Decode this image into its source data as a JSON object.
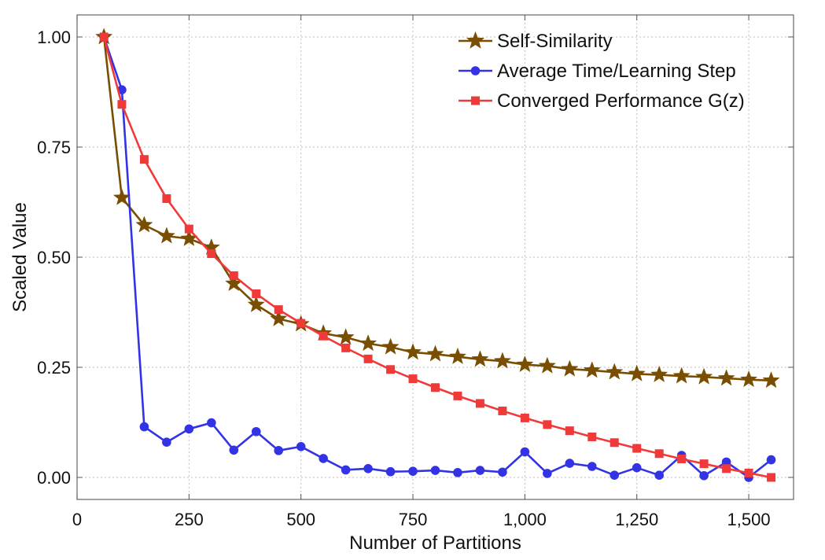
{
  "chart_data": {
    "type": "line",
    "title": "",
    "xlabel": "Number of Partitions",
    "ylabel": "Scaled Value",
    "xlim": [
      0,
      1600
    ],
    "ylim": [
      -0.05,
      1.05
    ],
    "xticks": [
      0,
      250,
      500,
      750,
      1000,
      1250,
      1500
    ],
    "xtick_labels": [
      "0",
      "250",
      "500",
      "750",
      "1,000",
      "1,250",
      "1,500"
    ],
    "yticks": [
      0,
      0.25,
      0.5,
      0.75,
      1.0
    ],
    "ytick_labels": [
      "0.00",
      "0.25",
      "0.50",
      "0.75",
      "1.00"
    ],
    "grid": true,
    "legend_position": "top-right",
    "series": [
      {
        "name": "Self-Similarity",
        "color": "#7a4e00",
        "marker": "star",
        "points": [
          [
            60,
            1.0
          ],
          [
            100,
            0.635
          ],
          [
            150,
            0.573
          ],
          [
            200,
            0.548
          ],
          [
            250,
            0.542
          ],
          [
            300,
            0.522
          ],
          [
            350,
            0.44
          ],
          [
            400,
            0.392
          ],
          [
            450,
            0.36
          ],
          [
            500,
            0.348
          ],
          [
            550,
            0.327
          ],
          [
            600,
            0.318
          ],
          [
            650,
            0.304
          ],
          [
            700,
            0.296
          ],
          [
            750,
            0.284
          ],
          [
            800,
            0.28
          ],
          [
            850,
            0.274
          ],
          [
            900,
            0.268
          ],
          [
            950,
            0.264
          ],
          [
            1000,
            0.256
          ],
          [
            1050,
            0.253
          ],
          [
            1100,
            0.246
          ],
          [
            1150,
            0.243
          ],
          [
            1200,
            0.239
          ],
          [
            1250,
            0.235
          ],
          [
            1300,
            0.233
          ],
          [
            1350,
            0.23
          ],
          [
            1400,
            0.228
          ],
          [
            1450,
            0.225
          ],
          [
            1500,
            0.222
          ],
          [
            1550,
            0.22
          ]
        ]
      },
      {
        "name": "Average Time/Learning Step",
        "color": "#3333e6",
        "marker": "circle",
        "points": [
          [
            60,
            1.0
          ],
          [
            100,
            0.88
          ],
          [
            150,
            0.115
          ],
          [
            200,
            0.08
          ],
          [
            250,
            0.11
          ],
          [
            300,
            0.124
          ],
          [
            350,
            0.062
          ],
          [
            400,
            0.104
          ],
          [
            450,
            0.061
          ],
          [
            500,
            0.07
          ],
          [
            550,
            0.043
          ],
          [
            600,
            0.017
          ],
          [
            650,
            0.02
          ],
          [
            700,
            0.013
          ],
          [
            750,
            0.014
          ],
          [
            800,
            0.016
          ],
          [
            850,
            0.011
          ],
          [
            900,
            0.016
          ],
          [
            950,
            0.012
          ],
          [
            1000,
            0.058
          ],
          [
            1050,
            0.009
          ],
          [
            1100,
            0.032
          ],
          [
            1150,
            0.025
          ],
          [
            1200,
            0.005
          ],
          [
            1250,
            0.022
          ],
          [
            1300,
            0.005
          ],
          [
            1350,
            0.05
          ],
          [
            1400,
            0.004
          ],
          [
            1450,
            0.035
          ],
          [
            1500,
            0.0
          ],
          [
            1550,
            0.04
          ]
        ]
      },
      {
        "name": "Converged Performance G(z)",
        "color": "#f03a3a",
        "marker": "square",
        "points": [
          [
            60,
            1.0
          ],
          [
            100,
            0.847
          ],
          [
            150,
            0.722
          ],
          [
            200,
            0.633
          ],
          [
            250,
            0.564
          ],
          [
            300,
            0.508
          ],
          [
            350,
            0.458
          ],
          [
            400,
            0.417
          ],
          [
            450,
            0.381
          ],
          [
            500,
            0.35
          ],
          [
            550,
            0.321
          ],
          [
            600,
            0.294
          ],
          [
            650,
            0.269
          ],
          [
            700,
            0.245
          ],
          [
            750,
            0.224
          ],
          [
            800,
            0.204
          ],
          [
            850,
            0.185
          ],
          [
            900,
            0.168
          ],
          [
            950,
            0.151
          ],
          [
            1000,
            0.135
          ],
          [
            1050,
            0.12
          ],
          [
            1100,
            0.106
          ],
          [
            1150,
            0.092
          ],
          [
            1200,
            0.079
          ],
          [
            1250,
            0.066
          ],
          [
            1300,
            0.054
          ],
          [
            1350,
            0.042
          ],
          [
            1400,
            0.031
          ],
          [
            1450,
            0.02
          ],
          [
            1500,
            0.01
          ],
          [
            1550,
            0.0
          ]
        ]
      }
    ]
  }
}
